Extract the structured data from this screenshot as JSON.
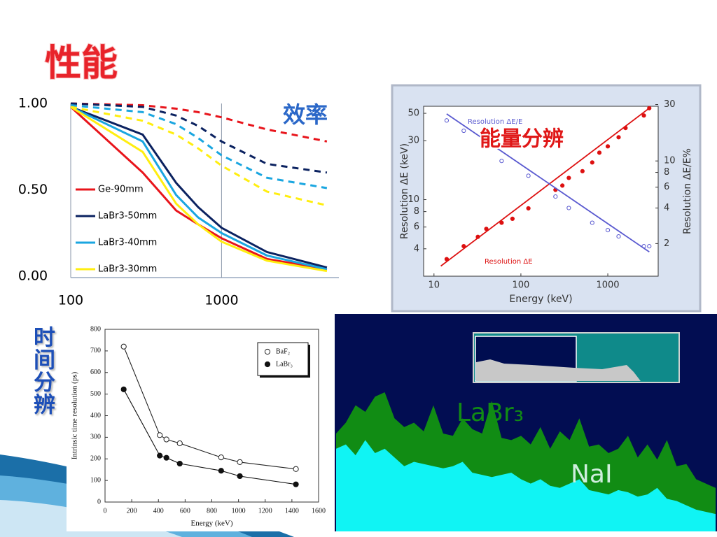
{
  "title": "性能",
  "chart_data": [
    {
      "type": "line",
      "annotation": "效率",
      "x": [
        100,
        300,
        500,
        700,
        1000,
        2000,
        5000
      ],
      "xlog": true,
      "xlim": [
        100,
        6000
      ],
      "xticks": [
        100,
        1000
      ],
      "xgrid": true,
      "ylim": [
        0,
        1
      ],
      "yticks": [
        {
          "value": 0,
          "label": "0.00"
        },
        {
          "value": 0.5,
          "label": "0.50"
        },
        {
          "value": 1,
          "label": "1.00"
        }
      ],
      "series": [
        {
          "name": "Ge-90mm",
          "color": "#e8141b",
          "values": [
            0.98,
            0.6,
            0.38,
            0.3,
            0.22,
            0.1,
            0.04
          ]
        },
        {
          "name": "LaBr3-50mm",
          "color": "#0b2260",
          "values": [
            0.98,
            0.82,
            0.54,
            0.4,
            0.28,
            0.14,
            0.05
          ]
        },
        {
          "name": "LaBr3-40mm",
          "color": "#1aa6e0",
          "values": [
            0.98,
            0.78,
            0.47,
            0.34,
            0.25,
            0.12,
            0.04
          ]
        },
        {
          "name": "LaBr3-30mm",
          "color": "#ffee10",
          "values": [
            0.98,
            0.72,
            0.42,
            0.3,
            0.2,
            0.09,
            0.03
          ]
        },
        {
          "color": "#e8141b",
          "dash": true,
          "values": [
            1.0,
            0.99,
            0.97,
            0.95,
            0.92,
            0.85,
            0.78
          ]
        },
        {
          "color": "#0b2260",
          "dash": true,
          "values": [
            1.0,
            0.98,
            0.93,
            0.87,
            0.78,
            0.65,
            0.6
          ]
        },
        {
          "color": "#1aa6e0",
          "dash": true,
          "values": [
            0.99,
            0.95,
            0.88,
            0.8,
            0.7,
            0.57,
            0.51
          ]
        },
        {
          "color": "#ffee10",
          "dash": true,
          "values": [
            0.98,
            0.9,
            0.82,
            0.74,
            0.64,
            0.49,
            0.41
          ]
        }
      ]
    },
    {
      "type": "scatter",
      "annotation": "能量分辨",
      "x_label": "Energy (keV)",
      "y_label": "Resolution ΔE (keV)",
      "y2_label": "Resolution ΔE/E%",
      "xlog": true,
      "ylog": true,
      "y2log": true,
      "xlim": [
        7.6,
        3800
      ],
      "xticks": [
        10,
        100,
        1000
      ],
      "ylim": [
        2.4,
        57
      ],
      "yticks": [
        4,
        6,
        8,
        10,
        30,
        50
      ],
      "y2lim": [
        1.06,
        29
      ],
      "y2ticks": [
        2,
        4,
        6,
        8,
        10,
        30
      ],
      "series": [
        {
          "name": "Resolution ΔE/E",
          "color": "#5a5ad0",
          "axis": "y2",
          "marker": "open",
          "x": [
            14,
            22,
            60,
            122,
            250,
            356,
            662,
            1000,
            1332,
            2600,
            3000
          ],
          "values": [
            22,
            18,
            10,
            7.5,
            5,
            4,
            3,
            2.6,
            2.3,
            1.9,
            1.9
          ]
        },
        {
          "name": "Resolution ΔE",
          "color": "#dd1010",
          "marker": "filled",
          "x": [
            14,
            22,
            32,
            40,
            60,
            80,
            122,
            250,
            300,
            356,
            511,
            662,
            800,
            1000,
            1332,
            1600,
            2600,
            3000
          ],
          "values": [
            3.3,
            4.2,
            5,
            5.8,
            6.5,
            7,
            8.5,
            12,
            13,
            15,
            17,
            20,
            24,
            27,
            32,
            38,
            48,
            55
          ]
        },
        {
          "color": "#dd1010",
          "line": true,
          "x": [
            12,
            3000
          ],
          "values": [
            2.9,
            55
          ]
        },
        {
          "color": "#5a5ad0",
          "line": true,
          "axis": "y2",
          "x": [
            14,
            3000
          ],
          "values": [
            25,
            1.7
          ]
        }
      ]
    },
    {
      "type": "scatter",
      "side_label": "时间分辨",
      "x_label": "Energy (keV)",
      "y_label": "Intrinsic time resolution (ps)",
      "xlim": [
        0,
        1600
      ],
      "xticks": [
        0,
        200,
        400,
        600,
        800,
        1000,
        1200,
        1400,
        1600
      ],
      "ylim": [
        0,
        800
      ],
      "yticks": [
        0,
        100,
        200,
        300,
        400,
        500,
        600,
        700,
        800
      ],
      "series": [
        {
          "name": "BaF₂",
          "color": "#222222",
          "marker": "open",
          "curve": true,
          "x": [
            140,
            410,
            460,
            560,
            870,
            1010,
            1430
          ],
          "values": [
            720,
            310,
            290,
            272,
            207,
            185,
            153
          ]
        },
        {
          "name": "LaBr₃",
          "color": "#111111",
          "marker": "filled",
          "curve": true,
          "x": [
            140,
            410,
            460,
            560,
            870,
            1010,
            1430
          ],
          "values": [
            522,
            215,
            205,
            178,
            145,
            120,
            82
          ]
        }
      ]
    },
    {
      "type": "area",
      "ylim": [
        0,
        100
      ],
      "series": [
        {
          "name": "LaBr₃",
          "color": "#118c14",
          "values": [
            45,
            50,
            58,
            55,
            62,
            64,
            52,
            48,
            50,
            46,
            58,
            45,
            44,
            52,
            47,
            45,
            60,
            43,
            42,
            44,
            40,
            48,
            38,
            46,
            42,
            52,
            39,
            40,
            36,
            38,
            44,
            34,
            40,
            33,
            42,
            30,
            31,
            24,
            22,
            20
          ]
        },
        {
          "name": "NaI",
          "color": "#10f4f4",
          "values": [
            38,
            40,
            35,
            42,
            36,
            38,
            34,
            30,
            32,
            31,
            30,
            29,
            30,
            32,
            27,
            26,
            25,
            26,
            27,
            24,
            22,
            24,
            21,
            20,
            22,
            24,
            19,
            18,
            17,
            19,
            18,
            16,
            17,
            20,
            15,
            14,
            12,
            10,
            9,
            8
          ]
        }
      ]
    }
  ]
}
